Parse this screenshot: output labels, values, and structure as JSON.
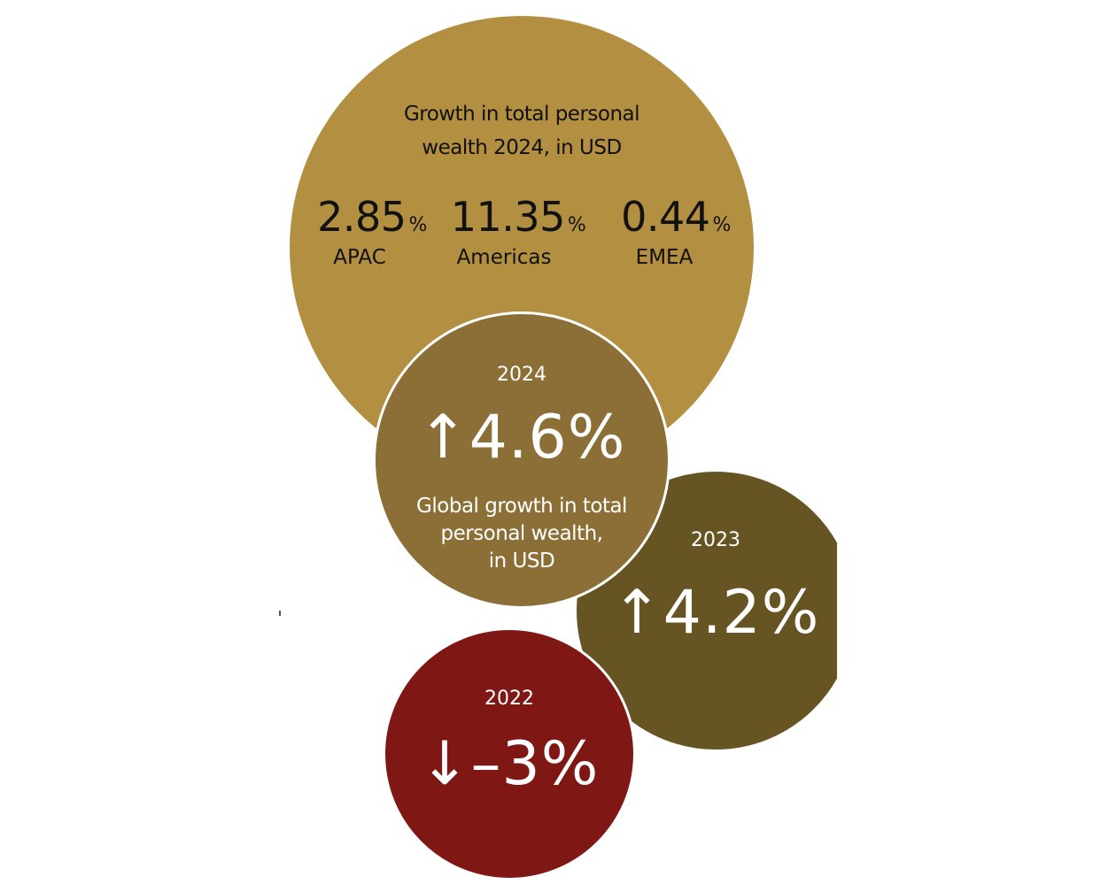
{
  "colors": {
    "main": "#B38F41",
    "y2024": "#8B6F36",
    "y2023": "#665423",
    "y2022": "#7F1715"
  },
  "regional": {
    "title_line1": "Growth in total personal",
    "title_line2": "wealth 2024, in USD",
    "items": [
      {
        "value": "2.85",
        "unit": "%",
        "label": "APAC"
      },
      {
        "value": "11.35",
        "unit": "%",
        "label": "Americas"
      },
      {
        "value": "0.44",
        "unit": "%",
        "label": "EMEA"
      }
    ]
  },
  "years": [
    {
      "year": "2024",
      "arrow": "↑",
      "value": "4.6%",
      "desc_line1": "Global growth in total",
      "desc_line2": "personal wealth,",
      "desc_line3": "in USD"
    },
    {
      "year": "2023",
      "arrow": "↑",
      "value": "4.2%"
    },
    {
      "year": "2022",
      "arrow": "↓",
      "value": "–3%"
    }
  ]
}
